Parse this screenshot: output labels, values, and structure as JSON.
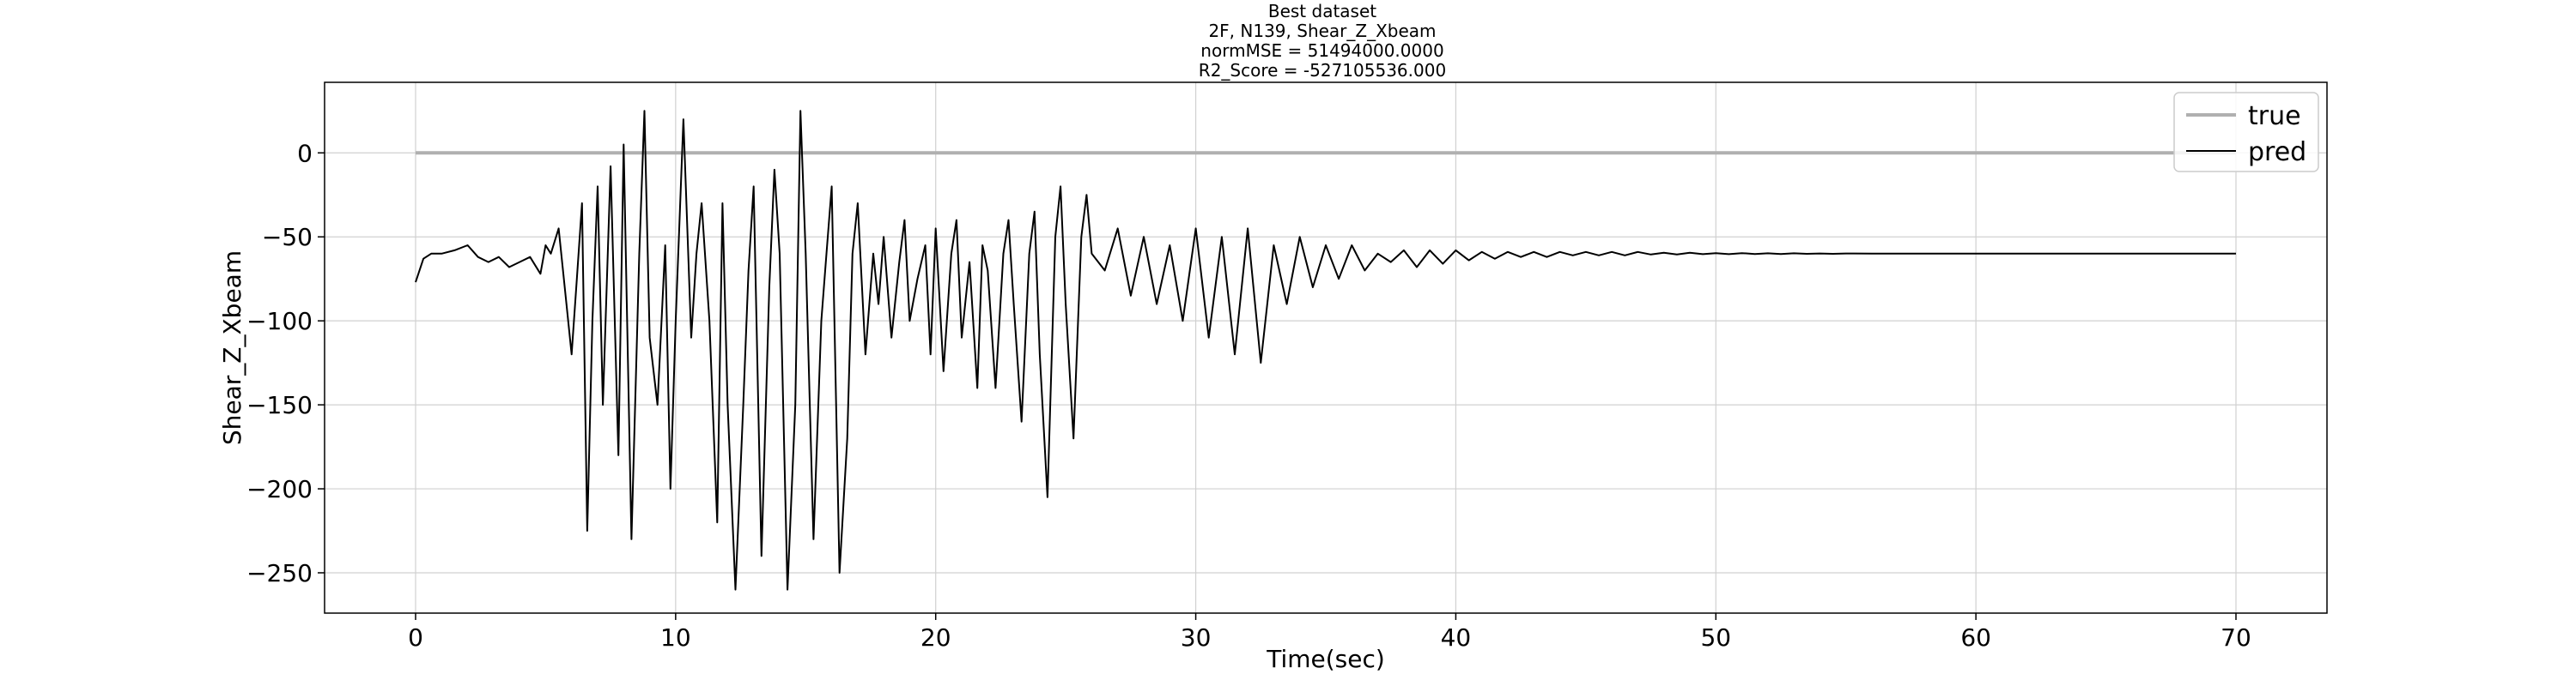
{
  "chart_data": {
    "type": "line",
    "title_lines": [
      "Best dataset",
      "2F, N139, Shear_Z_Xbeam",
      "normMSE = 51494000.0000",
      "R2_Score = -527105536.000"
    ],
    "xlabel": "Time(sec)",
    "ylabel": "Shear_Z_Xbeam",
    "xlim": [
      -3.5,
      73.5
    ],
    "ylim": [
      -274,
      42
    ],
    "xticks": [
      0,
      10,
      20,
      30,
      40,
      50,
      60,
      70
    ],
    "xtick_labels": [
      "0",
      "10",
      "20",
      "30",
      "40",
      "50",
      "60",
      "70"
    ],
    "yticks": [
      -250,
      -200,
      -150,
      -100,
      -50,
      0
    ],
    "ytick_labels": [
      "−250",
      "−200",
      "−150",
      "−100",
      "−50",
      "0"
    ],
    "grid": true,
    "legend_position": "top-right",
    "series": [
      {
        "name": "true",
        "color": "#b0b0b0",
        "x": [
          0,
          70
        ],
        "y": [
          0,
          0
        ]
      },
      {
        "name": "pred",
        "color": "#000000",
        "x": [
          0,
          0.3,
          0.6,
          1.0,
          1.5,
          2.0,
          2.4,
          2.8,
          3.2,
          3.6,
          4.0,
          4.4,
          4.8,
          5.0,
          5.2,
          5.5,
          5.8,
          6.0,
          6.2,
          6.4,
          6.6,
          6.8,
          7.0,
          7.2,
          7.5,
          7.8,
          8.0,
          8.3,
          8.6,
          8.8,
          9.0,
          9.3,
          9.6,
          9.8,
          10.0,
          10.3,
          10.6,
          10.8,
          11.0,
          11.3,
          11.6,
          11.8,
          12.0,
          12.3,
          12.6,
          12.8,
          13.0,
          13.3,
          13.6,
          13.8,
          14.0,
          14.3,
          14.6,
          14.8,
          15.0,
          15.3,
          15.6,
          15.8,
          16.0,
          16.3,
          16.6,
          16.8,
          17.0,
          17.3,
          17.6,
          17.8,
          18.0,
          18.3,
          18.6,
          18.8,
          19.0,
          19.3,
          19.6,
          19.8,
          20.0,
          20.3,
          20.6,
          20.8,
          21.0,
          21.3,
          21.6,
          21.8,
          22.0,
          22.3,
          22.6,
          22.8,
          23.0,
          23.3,
          23.6,
          23.8,
          24.0,
          24.3,
          24.6,
          24.8,
          25.0,
          25.3,
          25.6,
          25.8,
          26.0,
          26.5,
          27.0,
          27.5,
          28.0,
          28.5,
          29.0,
          29.5,
          30.0,
          30.5,
          31.0,
          31.5,
          32.0,
          32.5,
          33.0,
          33.5,
          34.0,
          34.5,
          35.0,
          35.5,
          36.0,
          36.5,
          37.0,
          37.5,
          38.0,
          38.5,
          39.0,
          39.5,
          40.0,
          40.5,
          41.0,
          41.5,
          42.0,
          42.5,
          43.0,
          43.5,
          44.0,
          44.5,
          45.0,
          45.5,
          46.0,
          46.5,
          47.0,
          47.5,
          48.0,
          48.5,
          49.0,
          49.5,
          50.0,
          50.5,
          51.0,
          51.5,
          52.0,
          52.5,
          53.0,
          53.5,
          54.0,
          54.5,
          55.0,
          56.0,
          57.0,
          58.0,
          59.0,
          60.0,
          62.0,
          64.0,
          66.0,
          68.0,
          70.0
        ],
        "y": [
          -77,
          -63,
          -60,
          -60,
          -58,
          -55,
          -62,
          -65,
          -62,
          -68,
          -65,
          -62,
          -72,
          -55,
          -60,
          -45,
          -90,
          -120,
          -75,
          -30,
          -225,
          -100,
          -20,
          -150,
          -8,
          -180,
          5,
          -230,
          -60,
          25,
          -110,
          -150,
          -55,
          -200,
          -100,
          20,
          -110,
          -60,
          -30,
          -100,
          -220,
          -30,
          -150,
          -260,
          -150,
          -70,
          -20,
          -240,
          -80,
          -10,
          -60,
          -260,
          -150,
          25,
          -60,
          -230,
          -100,
          -60,
          -20,
          -250,
          -170,
          -60,
          -30,
          -120,
          -60,
          -90,
          -50,
          -110,
          -65,
          -40,
          -100,
          -75,
          -55,
          -120,
          -45,
          -130,
          -60,
          -40,
          -110,
          -65,
          -140,
          -55,
          -70,
          -140,
          -60,
          -40,
          -90,
          -160,
          -60,
          -35,
          -120,
          -205,
          -50,
          -20,
          -90,
          -170,
          -50,
          -25,
          -60,
          -70,
          -45,
          -85,
          -50,
          -90,
          -55,
          -100,
          -45,
          -110,
          -50,
          -120,
          -45,
          -125,
          -55,
          -90,
          -50,
          -80,
          -55,
          -75,
          -55,
          -70,
          -60,
          -65,
          -58,
          -68,
          -58,
          -66,
          -58,
          -64,
          -59,
          -63,
          -59,
          -62,
          -59,
          -62,
          -59,
          -61,
          -59,
          -61,
          -59,
          -61,
          -59,
          -60.5,
          -59.5,
          -60.5,
          -59.5,
          -60.3,
          -59.7,
          -60.3,
          -59.7,
          -60.2,
          -59.8,
          -60.2,
          -59.8,
          -60.1,
          -59.9,
          -60.1,
          -59.9,
          -60,
          -60,
          -60,
          -60,
          -60,
          -60,
          -60,
          -60,
          -60,
          -60
        ]
      }
    ]
  }
}
